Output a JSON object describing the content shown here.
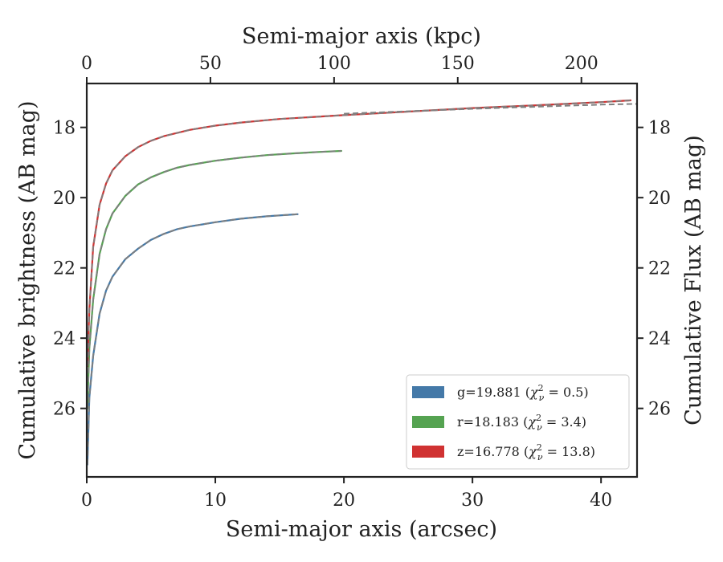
{
  "chart_data": {
    "type": "line",
    "xlabel": "Semi-major axis (arcsec)",
    "xlabel_top": "Semi-major axis (kpc)",
    "ylabel": "Cumulative brightness (AB mag)",
    "ylabel_right": "Cumulative Flux (AB mag)",
    "xlim": [
      0,
      42.8
    ],
    "ylim": [
      27.95,
      16.75
    ],
    "xlim_top": [
      0,
      222.5
    ],
    "y_inverted": true,
    "grid": false,
    "legend_position": "lower-right",
    "x_ticks": [
      "0",
      "10",
      "20",
      "30",
      "40"
    ],
    "x_tick_values": [
      0,
      10,
      20,
      30,
      40
    ],
    "x_ticks_top": [
      "0",
      "50",
      "100",
      "150",
      "200"
    ],
    "x_tick_values_top": [
      0,
      50,
      100,
      150,
      200
    ],
    "y_ticks": [
      "18",
      "20",
      "22",
      "24",
      "26"
    ],
    "y_tick_values": [
      18,
      20,
      22,
      24,
      26
    ],
    "y_ticks_right": [
      "18",
      "20",
      "22",
      "24",
      "26"
    ],
    "series": [
      {
        "name": "g=19.881",
        "chi2": "0.5",
        "color": "#4479a8",
        "x": [
          0.05,
          0.2,
          0.5,
          1,
          1.5,
          2,
          3,
          4,
          5,
          6,
          7,
          8,
          10,
          12,
          14,
          16.4
        ],
        "y": [
          27.6,
          25.7,
          24.5,
          23.3,
          22.65,
          22.25,
          21.75,
          21.45,
          21.2,
          21.03,
          20.9,
          20.82,
          20.7,
          20.6,
          20.53,
          20.47
        ]
      },
      {
        "name": "r=18.183",
        "chi2": "3.4",
        "color": "#55a351",
        "x": [
          0.05,
          0.2,
          0.5,
          1,
          1.5,
          2,
          3,
          4,
          5,
          6,
          7,
          8,
          10,
          12,
          14,
          16,
          18,
          19.8
        ],
        "y": [
          26.0,
          24.3,
          22.9,
          21.6,
          20.9,
          20.45,
          19.95,
          19.62,
          19.42,
          19.27,
          19.15,
          19.07,
          18.95,
          18.86,
          18.79,
          18.74,
          18.7,
          18.67
        ]
      },
      {
        "name": "z=16.778",
        "chi2": "13.8",
        "color": "#d03232",
        "x": [
          0.05,
          0.2,
          0.5,
          1,
          1.5,
          2,
          3,
          4,
          5,
          6,
          8,
          10,
          12,
          15,
          20,
          25,
          30,
          35,
          40,
          42.3
        ],
        "y": [
          24.8,
          23.2,
          21.4,
          20.2,
          19.6,
          19.22,
          18.82,
          18.56,
          18.38,
          18.25,
          18.07,
          17.95,
          17.86,
          17.76,
          17.65,
          17.55,
          17.45,
          17.37,
          17.28,
          17.23
        ]
      }
    ],
    "model_line": {
      "color": "#808080",
      "style": "dashed",
      "z_tail": {
        "x": [
          20,
          25,
          30,
          35,
          40,
          42.8
        ],
        "y": [
          17.61,
          17.54,
          17.47,
          17.41,
          17.35,
          17.33
        ]
      }
    }
  }
}
